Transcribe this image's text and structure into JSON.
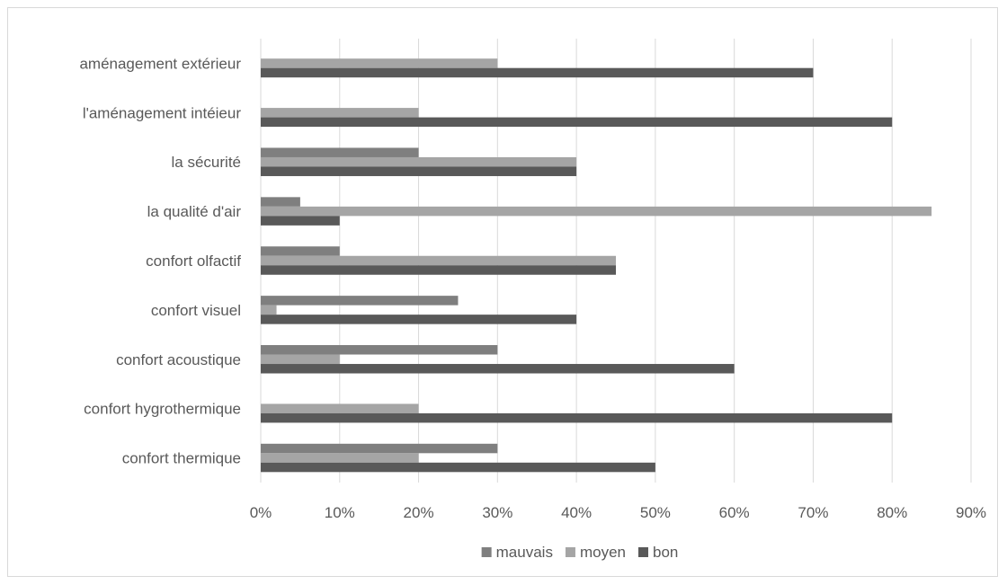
{
  "chart_data": {
    "type": "bar",
    "orientation": "horizontal",
    "title": "",
    "xlabel": "",
    "ylabel": "",
    "categories": [
      "aménagement extérieur",
      "l'aménagement intéieur",
      "la sécurité",
      "la qualité d'air",
      "confort olfactif",
      "confort visuel",
      "confort acoustique",
      "confort hygrothermique",
      "confort thermique"
    ],
    "series": [
      {
        "name": "mauvais",
        "color": "#7f7f7f",
        "values": [
          0,
          0,
          0.2,
          0.05,
          0.1,
          0.25,
          0.3,
          0,
          0.3
        ]
      },
      {
        "name": "moyen",
        "color": "#a5a5a5",
        "values": [
          0.3,
          0.2,
          0.4,
          0.85,
          0.45,
          0.02,
          0.1,
          0.2,
          0.2
        ]
      },
      {
        "name": "bon",
        "color": "#595959",
        "values": [
          0.7,
          0.8,
          0.4,
          0.1,
          0.45,
          0.4,
          0.6,
          0.8,
          0.5
        ]
      }
    ],
    "xlim": [
      0,
      0.9
    ],
    "xticks": [
      "0%",
      "10%",
      "20%",
      "30%",
      "40%",
      "50%",
      "60%",
      "70%",
      "80%",
      "90%"
    ],
    "grid": true,
    "legend_position": "bottom"
  }
}
